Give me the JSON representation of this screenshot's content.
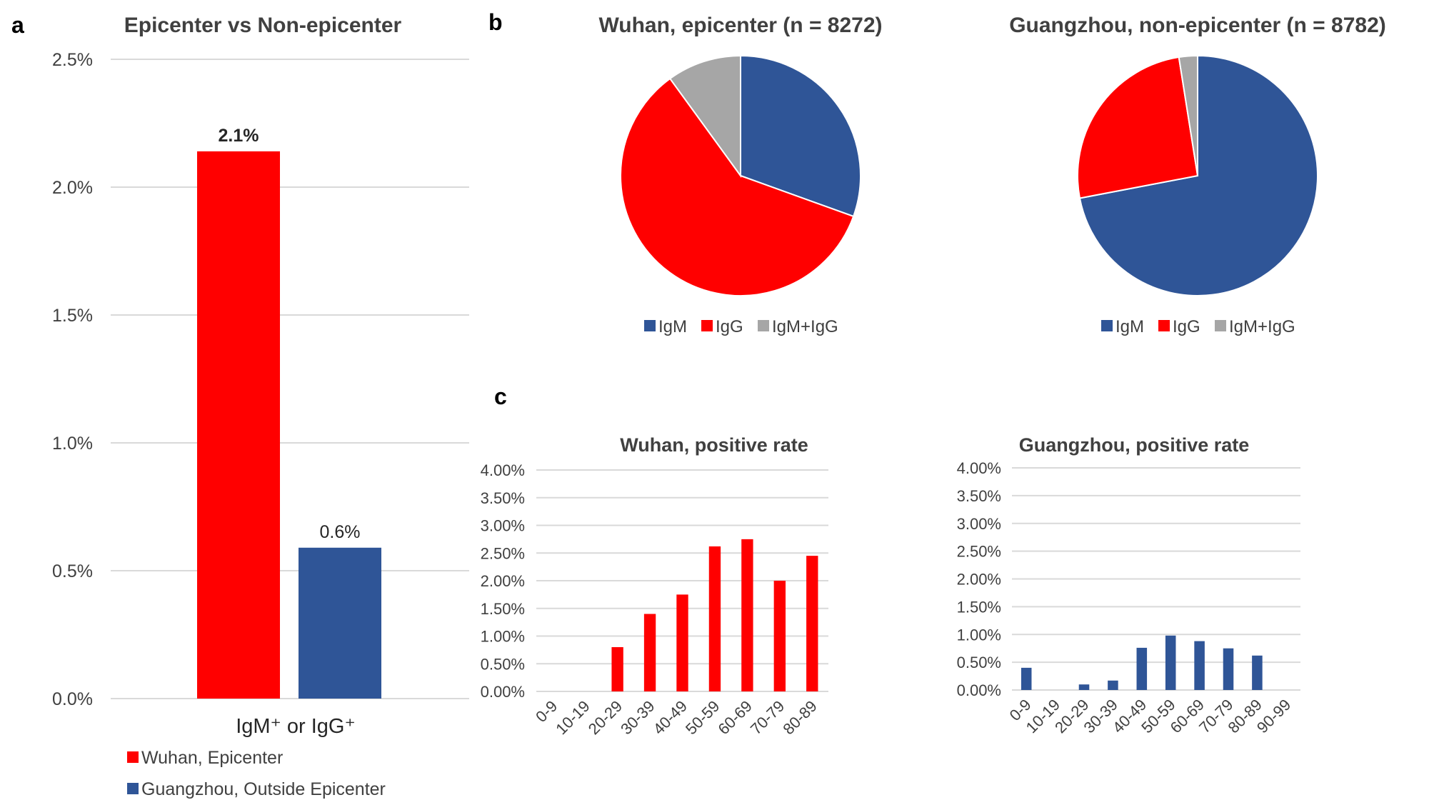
{
  "panel_labels": {
    "a": "a",
    "b": "b",
    "c": "c"
  },
  "colors": {
    "red": "#ff0000",
    "blue": "#2f5597",
    "grey": "#a6a6a6"
  },
  "chart_data": [
    {
      "id": "a",
      "type": "bar",
      "title": "Epicenter vs Non-epicenter",
      "categories": [
        "IgM⁺ or IgG⁺"
      ],
      "xlabel": "IgM⁺  or  IgG⁺",
      "ylim": [
        0,
        2.5
      ],
      "yticks": [
        "0.0%",
        "0.5%",
        "1.0%",
        "1.5%",
        "2.0%",
        "2.5%"
      ],
      "series": [
        {
          "name": "Wuhan, Epicenter",
          "values": [
            2.14
          ],
          "label": "2.1%",
          "color": "#ff0000"
        },
        {
          "name": "Guangzhou, Outside Epicenter",
          "values": [
            0.59
          ],
          "label": "0.6%",
          "color": "#2f5597"
        }
      ],
      "legend": "bottom-left"
    },
    {
      "id": "b1",
      "type": "pie",
      "title": "Wuhan, epicenter (n = 8272)",
      "labels": [
        "IgM",
        "IgG",
        "IgM+IgG"
      ],
      "values": [
        30.5,
        59.5,
        10
      ],
      "colors": [
        "#2f5597",
        "#ff0000",
        "#a6a6a6"
      ]
    },
    {
      "id": "b2",
      "type": "pie",
      "title": "Guangzhou, non-epicenter (n = 8782)",
      "labels": [
        "IgM",
        "IgG",
        "IgM+IgG"
      ],
      "values": [
        72,
        25.5,
        2.5
      ],
      "colors": [
        "#2f5597",
        "#ff0000",
        "#a6a6a6"
      ]
    },
    {
      "id": "c1",
      "type": "bar",
      "title": "Wuhan, positive rate",
      "categories": [
        "0-9",
        "10-19",
        "20-29",
        "30-39",
        "40-49",
        "50-59",
        "60-69",
        "70-79",
        "80-89"
      ],
      "values": [
        0,
        0,
        0.8,
        1.4,
        1.75,
        2.62,
        2.75,
        2.0,
        2.45
      ],
      "ylim": [
        0,
        4
      ],
      "yticks": [
        "0.00%",
        "0.50%",
        "1.00%",
        "1.50%",
        "2.00%",
        "2.50%",
        "3.00%",
        "3.50%",
        "4.00%"
      ],
      "color": "#ff0000"
    },
    {
      "id": "c2",
      "type": "bar",
      "title": "Guangzhou, positive rate",
      "categories": [
        "0-9",
        "10-19",
        "20-29",
        "30-39",
        "40-49",
        "50-59",
        "60-69",
        "70-79",
        "80-89",
        "90-99"
      ],
      "values": [
        0.4,
        0,
        0.1,
        0.17,
        0.76,
        0.98,
        0.88,
        0.75,
        0.62,
        0
      ],
      "ylim": [
        0,
        4
      ],
      "yticks": [
        "0.00%",
        "0.50%",
        "1.00%",
        "1.50%",
        "2.00%",
        "2.50%",
        "3.00%",
        "3.50%",
        "4.00%"
      ],
      "color": "#2f5597"
    }
  ]
}
